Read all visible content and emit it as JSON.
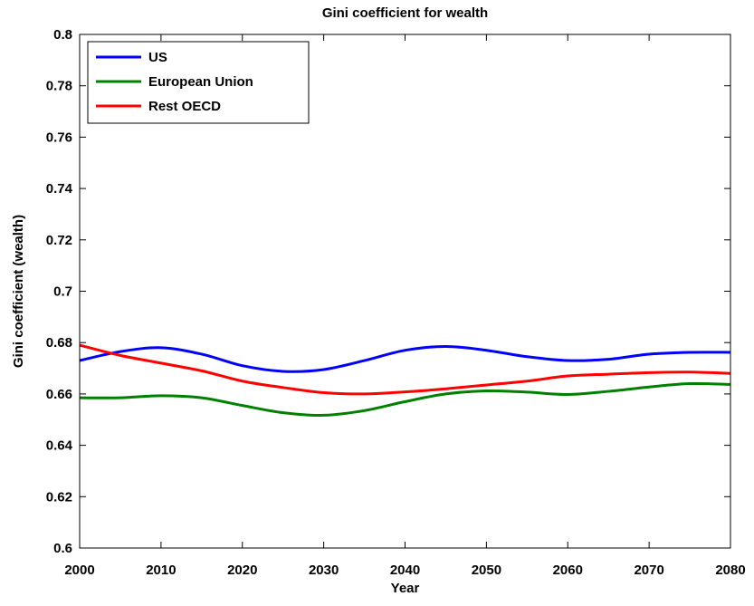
{
  "chart_data": {
    "type": "line",
    "title": "Gini coefficient for wealth",
    "xlabel": "Year",
    "ylabel": "Gini coefficient (wealth)",
    "xlim": [
      2000,
      2080
    ],
    "ylim": [
      0.6,
      0.8
    ],
    "x_ticks": [
      "2000",
      "2010",
      "2020",
      "2030",
      "2040",
      "2050",
      "2060",
      "2070",
      "2080"
    ],
    "y_ticks": [
      "0.6",
      "0.62",
      "0.64",
      "0.66",
      "0.68",
      "0.7",
      "0.72",
      "0.74",
      "0.76",
      "0.78",
      "0.8"
    ],
    "grid": false,
    "legend_position": "top-left",
    "x": [
      2000,
      2005,
      2010,
      2015,
      2020,
      2025,
      2030,
      2035,
      2040,
      2045,
      2050,
      2055,
      2060,
      2065,
      2070,
      2075,
      2080
    ],
    "series": [
      {
        "name": "US",
        "color": "#0000ff",
        "values": [
          0.673,
          0.6765,
          0.678,
          0.6755,
          0.671,
          0.6688,
          0.6695,
          0.673,
          0.677,
          0.6785,
          0.677,
          0.6745,
          0.673,
          0.6735,
          0.6755,
          0.6762,
          0.6762
        ]
      },
      {
        "name": "European Union",
        "color": "#008000",
        "values": [
          0.6585,
          0.6585,
          0.6593,
          0.6585,
          0.6555,
          0.6527,
          0.6517,
          0.6535,
          0.657,
          0.66,
          0.6612,
          0.6607,
          0.6598,
          0.661,
          0.6627,
          0.664,
          0.6637
        ]
      },
      {
        "name": "Rest OECD",
        "color": "#ff0000",
        "values": [
          0.679,
          0.675,
          0.672,
          0.669,
          0.665,
          0.6625,
          0.6605,
          0.66,
          0.6608,
          0.662,
          0.6635,
          0.665,
          0.667,
          0.6677,
          0.6683,
          0.6685,
          0.668
        ]
      }
    ]
  }
}
